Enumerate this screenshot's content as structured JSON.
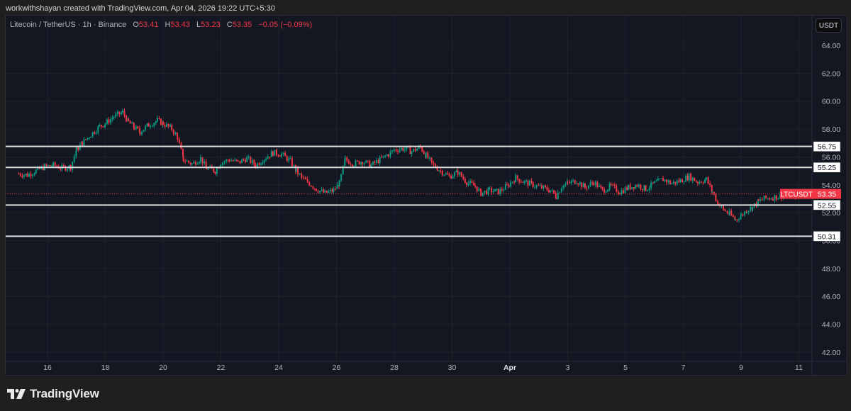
{
  "credit": "workwithshayan created with TradingView.com, Apr 04, 2026 19:22 UTC+5:30",
  "legend": {
    "symbol": "Litecoin / TetherUS · 1h · Binance",
    "o_label": "O",
    "o_value": "53.41",
    "h_label": "H",
    "h_value": "53.43",
    "l_label": "L",
    "l_value": "53.23",
    "c_label": "C",
    "c_value": "53.35",
    "change": "−0.05 (−0.09%)"
  },
  "currency_button": "USDT",
  "brand": "TradingView",
  "colors": {
    "up": "#089981",
    "down": "#f23645",
    "background": "#131722",
    "grid": "#1e222d",
    "level_line": "#e0e0e0"
  },
  "chart_data": {
    "type": "candlestick",
    "title": "Litecoin / TetherUS · 1h · Binance",
    "xlabel": "",
    "ylabel": "USDT",
    "ylim": [
      41.5,
      65
    ],
    "y_ticks": [
      "64.00",
      "62.00",
      "60.00",
      "58.00",
      "56.00",
      "54.00",
      "52.00",
      "50.00",
      "48.00",
      "46.00",
      "44.00",
      "42.00"
    ],
    "x_ticks": [
      "16",
      "18",
      "20",
      "22",
      "24",
      "26",
      "28",
      "30",
      "Apr",
      "3",
      "5",
      "7",
      "9",
      "11"
    ],
    "grid": true,
    "current_price": {
      "label": "LTCUSDT",
      "value": "53.35"
    },
    "horizontal_levels": [
      "56.75",
      "55.25",
      "52.55",
      "50.31"
    ],
    "close_path": [
      [
        15.0,
        54.8
      ],
      [
        15.3,
        54.7
      ],
      [
        15.6,
        55.0
      ],
      [
        15.9,
        55.3
      ],
      [
        16.2,
        55.4
      ],
      [
        16.5,
        55.2
      ],
      [
        16.8,
        55.3
      ],
      [
        17.0,
        56.5
      ],
      [
        17.2,
        57.0
      ],
      [
        17.5,
        57.6
      ],
      [
        17.8,
        58.2
      ],
      [
        18.0,
        58.4
      ],
      [
        18.3,
        58.9
      ],
      [
        18.6,
        59.2
      ],
      [
        18.8,
        58.5
      ],
      [
        19.0,
        58.1
      ],
      [
        19.2,
        57.8
      ],
      [
        19.5,
        58.3
      ],
      [
        19.8,
        58.6
      ],
      [
        20.0,
        58.4
      ],
      [
        20.3,
        58.0
      ],
      [
        20.5,
        57.4
      ],
      [
        20.7,
        55.8
      ],
      [
        21.0,
        55.5
      ],
      [
        21.3,
        55.9
      ],
      [
        21.5,
        55.2
      ],
      [
        21.8,
        55.0
      ],
      [
        22.0,
        55.6
      ],
      [
        22.3,
        55.8
      ],
      [
        22.6,
        55.6
      ],
      [
        22.9,
        55.9
      ],
      [
        23.2,
        55.4
      ],
      [
        23.5,
        55.9
      ],
      [
        23.8,
        56.3
      ],
      [
        24.1,
        56.2
      ],
      [
        24.4,
        55.7
      ],
      [
        24.6,
        55.0
      ],
      [
        24.8,
        54.5
      ],
      [
        25.0,
        54.2
      ],
      [
        25.3,
        53.7
      ],
      [
        25.6,
        53.4
      ],
      [
        25.9,
        53.6
      ],
      [
        26.1,
        54.1
      ],
      [
        26.3,
        55.8
      ],
      [
        26.6,
        55.5
      ],
      [
        26.9,
        55.7
      ],
      [
        27.2,
        55.4
      ],
      [
        27.5,
        55.8
      ],
      [
        27.8,
        56.2
      ],
      [
        28.0,
        56.5
      ],
      [
        28.3,
        56.6
      ],
      [
        28.6,
        56.4
      ],
      [
        28.9,
        56.7
      ],
      [
        29.1,
        56.1
      ],
      [
        29.3,
        55.5
      ],
      [
        29.6,
        55.0
      ],
      [
        29.9,
        54.6
      ],
      [
        30.2,
        54.9
      ],
      [
        30.5,
        54.2
      ],
      [
        30.8,
        53.9
      ],
      [
        31.0,
        53.4
      ],
      [
        31.3,
        53.6
      ],
      [
        31.6,
        53.5
      ],
      [
        31.9,
        53.9
      ],
      [
        32.2,
        54.5
      ],
      [
        32.5,
        54.2
      ],
      [
        32.8,
        54.0
      ],
      [
        33.1,
        53.8
      ],
      [
        33.4,
        53.6
      ],
      [
        33.6,
        53.2
      ],
      [
        33.8,
        53.9
      ],
      [
        34.0,
        54.1
      ],
      [
        34.3,
        54.3
      ],
      [
        34.6,
        53.8
      ],
      [
        34.9,
        54.2
      ],
      [
        35.2,
        53.6
      ],
      [
        35.5,
        53.9
      ],
      [
        35.8,
        53.5
      ],
      [
        36.1,
        53.8
      ],
      [
        36.4,
        54.0
      ],
      [
        36.7,
        53.7
      ],
      [
        37.0,
        54.1
      ],
      [
        37.3,
        54.4
      ],
      [
        37.6,
        54.1
      ],
      [
        37.9,
        54.3
      ],
      [
        38.2,
        54.6
      ],
      [
        38.5,
        54.2
      ],
      [
        38.8,
        54.4
      ],
      [
        39.0,
        53.5
      ],
      [
        39.2,
        52.7
      ],
      [
        39.4,
        52.2
      ],
      [
        39.6,
        51.9
      ],
      [
        39.8,
        51.5
      ],
      [
        40.0,
        51.8
      ],
      [
        40.2,
        52.2
      ],
      [
        40.4,
        52.4
      ],
      [
        40.6,
        52.8
      ],
      [
        40.8,
        53.0
      ],
      [
        41.1,
        53.1
      ],
      [
        41.4,
        53.2
      ],
      [
        41.7,
        53.3
      ],
      [
        42.0,
        53.3
      ],
      [
        42.3,
        53.4
      ],
      [
        42.6,
        53.35
      ]
    ]
  }
}
